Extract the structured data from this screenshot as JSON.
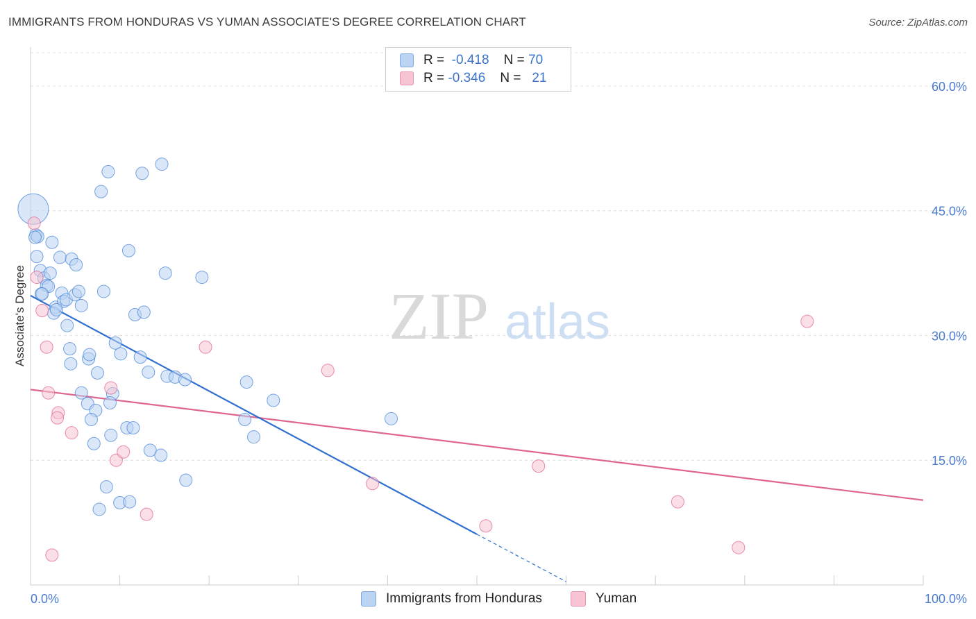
{
  "title": "IMMIGRANTS FROM HONDURAS VS YUMAN ASSOCIATE'S DEGREE CORRELATION CHART",
  "source": "Source: ZipAtlas.com",
  "watermark": {
    "zip": "ZIP",
    "atlas": "atlas"
  },
  "legend": {
    "rows": [
      {
        "r_label": "R =",
        "r_value": "-0.418",
        "n_label": "N =",
        "n_value": "70",
        "color": "#a9c8f0"
      },
      {
        "r_label": "R =",
        "r_value": "-0.346",
        "n_label": "N =",
        "n_value": "21",
        "color": "#f5b8cb"
      }
    ]
  },
  "chart_data": {
    "type": "scatter",
    "ylabel": "Associate's Degree",
    "xlabel": "",
    "x_tick_labels": [
      "0.0%",
      "100.0%"
    ],
    "y_tick_labels": [
      "15.0%",
      "30.0%",
      "45.0%",
      "60.0%"
    ],
    "y_ticks": [
      15,
      30,
      45,
      60
    ],
    "xlim": [
      0,
      100
    ],
    "ylim": [
      0,
      64
    ],
    "grid": true,
    "series": [
      {
        "name": "Immigrants from Honduras",
        "color": "#4a86d8",
        "fill": "#bcd4f3",
        "points": [
          [
            0.3,
            45.2
          ],
          [
            0.6,
            42.1
          ],
          [
            0.8,
            41.9
          ],
          [
            0.7,
            39.5
          ],
          [
            1.1,
            37.8
          ],
          [
            1.5,
            36.9
          ],
          [
            1.8,
            36.0
          ],
          [
            2.0,
            35.9
          ],
          [
            2.2,
            37.5
          ],
          [
            2.4,
            41.2
          ],
          [
            1.2,
            35.0
          ],
          [
            2.8,
            33.4
          ],
          [
            2.6,
            32.7
          ],
          [
            3.3,
            39.4
          ],
          [
            3.5,
            35.1
          ],
          [
            3.7,
            34.1
          ],
          [
            4.0,
            34.3
          ],
          [
            4.6,
            39.2
          ],
          [
            5.1,
            38.5
          ],
          [
            5.0,
            34.9
          ],
          [
            5.4,
            35.3
          ],
          [
            5.7,
            33.6
          ],
          [
            4.1,
            31.2
          ],
          [
            4.4,
            28.4
          ],
          [
            4.5,
            26.6
          ],
          [
            6.5,
            27.2
          ],
          [
            6.6,
            27.7
          ],
          [
            7.5,
            25.5
          ],
          [
            5.7,
            23.1
          ],
          [
            6.4,
            21.8
          ],
          [
            7.9,
            47.3
          ],
          [
            8.7,
            49.7
          ],
          [
            8.2,
            35.3
          ],
          [
            9.5,
            29.1
          ],
          [
            10.1,
            27.8
          ],
          [
            11.0,
            40.2
          ],
          [
            11.7,
            32.5
          ],
          [
            12.3,
            27.4
          ],
          [
            12.7,
            32.8
          ],
          [
            12.5,
            49.5
          ],
          [
            14.7,
            50.6
          ],
          [
            15.1,
            37.5
          ],
          [
            13.2,
            25.6
          ],
          [
            15.3,
            25.1
          ],
          [
            16.2,
            25.0
          ],
          [
            17.3,
            24.7
          ],
          [
            19.2,
            37.0
          ],
          [
            9.2,
            23.0
          ],
          [
            7.3,
            21.0
          ],
          [
            6.8,
            19.9
          ],
          [
            8.9,
            21.9
          ],
          [
            9.0,
            18.0
          ],
          [
            10.8,
            18.9
          ],
          [
            11.5,
            18.9
          ],
          [
            7.1,
            17.0
          ],
          [
            13.4,
            16.2
          ],
          [
            14.6,
            15.6
          ],
          [
            17.4,
            12.6
          ],
          [
            8.5,
            11.8
          ],
          [
            7.7,
            9.1
          ],
          [
            10.0,
            9.9
          ],
          [
            11.1,
            10.0
          ],
          [
            24.2,
            24.4
          ],
          [
            27.2,
            22.2
          ],
          [
            24.0,
            19.9
          ],
          [
            25.0,
            17.8
          ],
          [
            40.4,
            20.0
          ],
          [
            0.5,
            41.8
          ],
          [
            1.3,
            35.0
          ],
          [
            2.9,
            33.1
          ]
        ],
        "trend": {
          "x1": 0,
          "y1": 34.8,
          "x2": 50,
          "y2": 6.1,
          "dash_x2": 60,
          "dash_y2": 0.4
        }
      },
      {
        "name": "Yuman",
        "color": "#e06690",
        "fill": "#f7c4d4",
        "points": [
          [
            0.4,
            43.5
          ],
          [
            0.7,
            37.0
          ],
          [
            1.3,
            33.0
          ],
          [
            1.8,
            28.6
          ],
          [
            2.0,
            23.1
          ],
          [
            3.1,
            20.7
          ],
          [
            3.0,
            20.1
          ],
          [
            4.6,
            18.3
          ],
          [
            9.0,
            23.7
          ],
          [
            9.6,
            15.0
          ],
          [
            10.4,
            16.0
          ],
          [
            13.0,
            8.5
          ],
          [
            2.4,
            3.6
          ],
          [
            19.6,
            28.6
          ],
          [
            33.3,
            25.8
          ],
          [
            38.3,
            12.2
          ],
          [
            51.0,
            7.1
          ],
          [
            56.9,
            14.3
          ],
          [
            72.5,
            10.0
          ],
          [
            79.3,
            4.5
          ],
          [
            87.0,
            31.7
          ]
        ],
        "trend": {
          "x1": 0,
          "y1": 23.5,
          "x2": 100,
          "y2": 10.2
        }
      }
    ]
  },
  "bottom_legend": [
    {
      "label": "Immigrants from Honduras",
      "color": "#a9c8f0"
    },
    {
      "label": "Yuman",
      "color": "#f5b8cb"
    }
  ]
}
